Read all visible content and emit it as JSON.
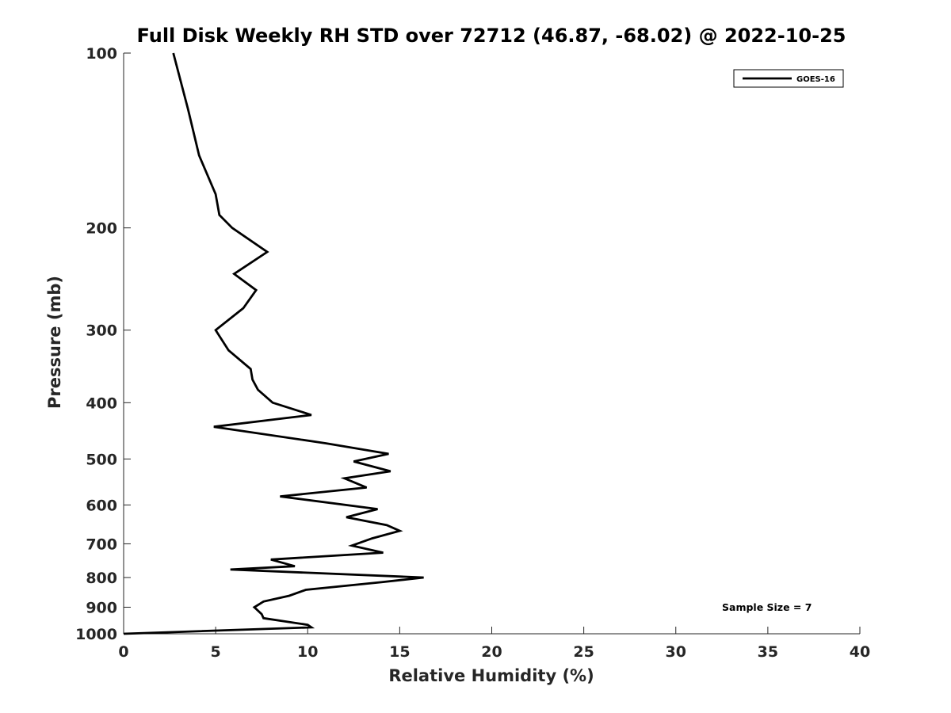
{
  "chart_data": {
    "type": "line",
    "title": "Full Disk Weekly RH STD over 72712 (46.87, -68.02) @ 2022-10-25",
    "xlabel": "Relative Humidity (%)",
    "ylabel": "Pressure (mb)",
    "xlim": [
      0,
      40
    ],
    "ylim": [
      100,
      1000
    ],
    "y_scale": "log",
    "y_inverted": true,
    "grid": false,
    "legend_position": "top-right",
    "x_ticks": [
      "0",
      "5",
      "10",
      "15",
      "20",
      "25",
      "30",
      "35",
      "40"
    ],
    "x_tick_values": [
      0,
      5,
      10,
      15,
      20,
      25,
      30,
      35,
      40
    ],
    "y_ticks": [
      "100",
      "200",
      "300",
      "400",
      "500",
      "600",
      "700",
      "800",
      "900",
      "1000"
    ],
    "y_tick_values": [
      100,
      200,
      300,
      400,
      500,
      600,
      700,
      800,
      900,
      1000
    ],
    "series": [
      {
        "name": "GOES-16",
        "color": "#000000",
        "points": [
          [
            2.7,
            100
          ],
          [
            3.5,
            125
          ],
          [
            4.1,
            150
          ],
          [
            5.0,
            175
          ],
          [
            5.2,
            190
          ],
          [
            5.9,
            200
          ],
          [
            7.8,
            220
          ],
          [
            6.0,
            240
          ],
          [
            7.2,
            256
          ],
          [
            6.5,
            275
          ],
          [
            5.0,
            300
          ],
          [
            5.7,
            325
          ],
          [
            6.9,
            350
          ],
          [
            7.0,
            365
          ],
          [
            7.3,
            380
          ],
          [
            8.1,
            400
          ],
          [
            10.2,
            420
          ],
          [
            4.9,
            440
          ],
          [
            11.0,
            470
          ],
          [
            14.4,
            490
          ],
          [
            12.5,
            505
          ],
          [
            14.5,
            525
          ],
          [
            12.0,
            540
          ],
          [
            13.2,
            560
          ],
          [
            8.5,
            580
          ],
          [
            13.8,
            610
          ],
          [
            12.1,
            630
          ],
          [
            14.3,
            650
          ],
          [
            15.0,
            665
          ],
          [
            13.5,
            685
          ],
          [
            12.4,
            705
          ],
          [
            14.1,
            725
          ],
          [
            8.0,
            745
          ],
          [
            9.3,
            765
          ],
          [
            5.8,
            775
          ],
          [
            16.3,
            800
          ],
          [
            14.0,
            815
          ],
          [
            9.9,
            840
          ],
          [
            9.0,
            860
          ],
          [
            7.6,
            880
          ],
          [
            7.1,
            900
          ],
          [
            7.5,
            925
          ],
          [
            7.6,
            940
          ],
          [
            10.0,
            965
          ],
          [
            10.2,
            975
          ],
          [
            0.0,
            1000
          ]
        ]
      }
    ],
    "annotations": [
      "Sample Size = 7"
    ]
  }
}
